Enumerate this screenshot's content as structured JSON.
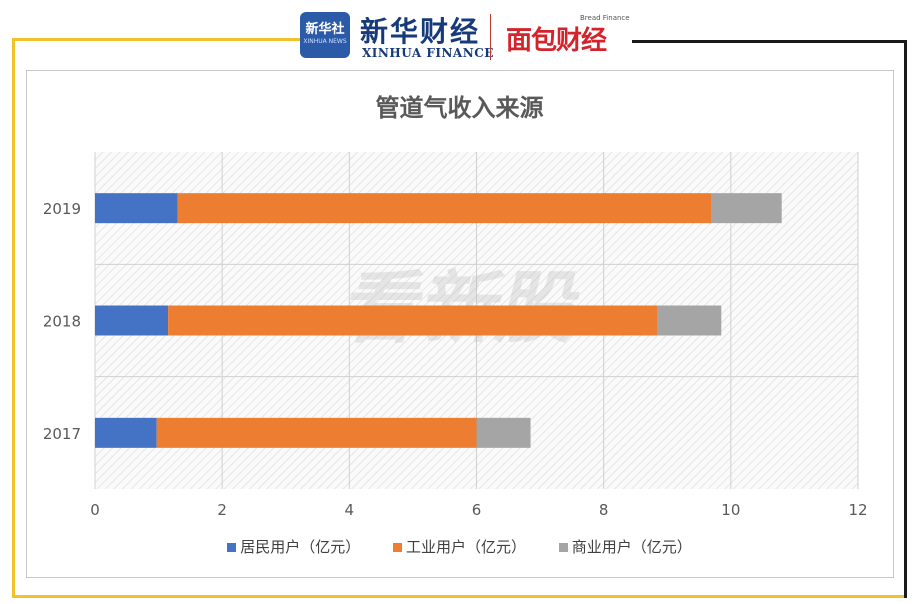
{
  "header": {
    "logo1_line1": "新华社",
    "logo1_line2": "XINHUA NEWS",
    "brand_cn": "新华财经",
    "brand_en": "XINHUA FINANCE",
    "brand2_cn": "面包财经",
    "brand2_en": "Bread Finance"
  },
  "watermark": "看新股",
  "colors": {
    "frame": "#f2c22b",
    "series1": "#4472c4",
    "series2": "#ed7d31",
    "series3": "#a5a5a5"
  },
  "chart_data": {
    "type": "bar",
    "orientation": "horizontal",
    "stacked": true,
    "title": "管道气收入来源",
    "categories": [
      "2019",
      "2018",
      "2017"
    ],
    "series": [
      {
        "name": "居民用户（亿元）",
        "values": [
          1.3,
          1.15,
          0.97
        ]
      },
      {
        "name": "工业用户（亿元）",
        "values": [
          8.4,
          7.7,
          5.03
        ]
      },
      {
        "name": "商业用户（亿元）",
        "values": [
          1.1,
          1.0,
          0.85
        ]
      }
    ],
    "xlim": [
      0,
      12
    ],
    "xticks": [
      "0",
      "2",
      "4",
      "6",
      "8",
      "10",
      "12"
    ],
    "grid": true,
    "legend_position": "bottom"
  }
}
